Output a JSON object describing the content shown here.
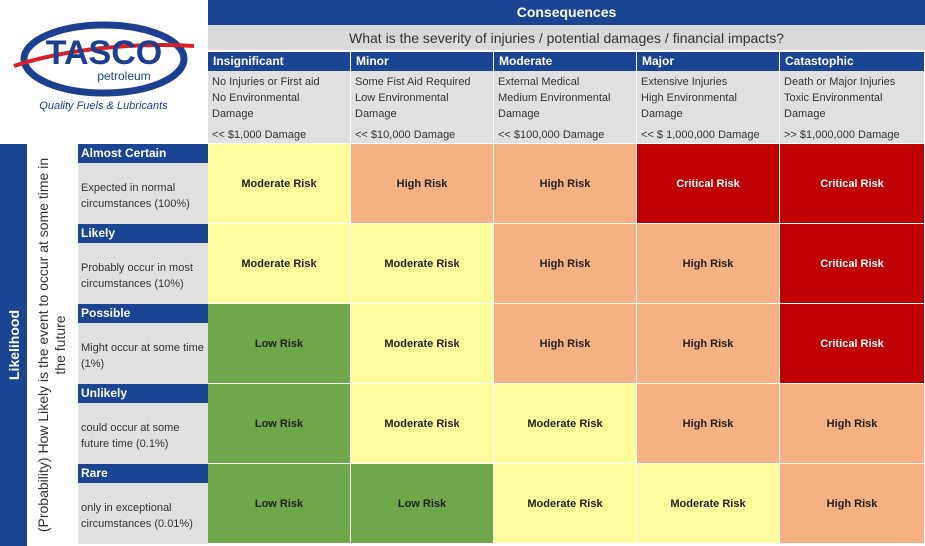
{
  "logo": {
    "brand": "TASCO",
    "sub": "petroleum",
    "tagline": "Quality Fuels & Lubricants"
  },
  "colors": {
    "header": "#1b4593",
    "low": "#6fa84a",
    "moderate": "#fdfd9e",
    "high": "#f5b084",
    "critical": "#c00000",
    "grey": "#e0e0e0"
  },
  "consequences": {
    "title": "Consequences",
    "question": "What is the severity of injuries / potential damages / financial impacts?",
    "columns": [
      {
        "name": "Insignificant",
        "line1": "No Injuries or First aid",
        "line2": "No Environmental",
        "line3": "Damage",
        "damage": "<< $1,000 Damage"
      },
      {
        "name": "Minor",
        "line1": "Some Fist Aid Required",
        "line2": "Low Environmental",
        "line3": "Damage",
        "damage": "<< $10,000 Damage"
      },
      {
        "name": "Moderate",
        "line1": "External Medical",
        "line2": "Medium Environmental",
        "line3": "Damage",
        "damage": "<< $100,000 Damage"
      },
      {
        "name": "Major",
        "line1": "Extensive Injuries",
        "line2": "High Environmental",
        "line3": "Damage",
        "damage": "<< $ 1,000,000 Damage"
      },
      {
        "name": "Catastophic",
        "line1": "Death or Major Injuries",
        "line2": "Toxic Environmental",
        "line3": "Damage",
        "damage": ">> $1,000,000 Damage"
      }
    ]
  },
  "likelihood": {
    "title": "Likelihood",
    "question": "(Probability) How Likely is the event to occur at some time in the future",
    "rows": [
      {
        "name": "Almost Certain",
        "desc": "Expected in normal circumstances (100%)",
        "cells": [
          [
            "Moderate Risk",
            "moderate"
          ],
          [
            "High Risk",
            "high"
          ],
          [
            "High Risk",
            "high"
          ],
          [
            "Critical Risk",
            "critical"
          ],
          [
            "Critical Risk",
            "critical"
          ]
        ]
      },
      {
        "name": "Likely",
        "desc": "Probably occur in most circumstances (10%)",
        "cells": [
          [
            "Moderate Risk",
            "moderate"
          ],
          [
            "Moderate Risk",
            "moderate"
          ],
          [
            "High Risk",
            "high"
          ],
          [
            "High Risk",
            "high"
          ],
          [
            "Critical Risk",
            "critical"
          ]
        ]
      },
      {
        "name": "Possible",
        "desc": "Might occur at some time (1%)",
        "cells": [
          [
            "Low Risk",
            "low"
          ],
          [
            "Moderate Risk",
            "moderate"
          ],
          [
            "High Risk",
            "high"
          ],
          [
            "High Risk",
            "high"
          ],
          [
            "Critical Risk",
            "critical"
          ]
        ]
      },
      {
        "name": "Unlikely",
        "desc": "could occur at some future time (0.1%)",
        "cells": [
          [
            "Low Risk",
            "low"
          ],
          [
            "Moderate Risk",
            "moderate"
          ],
          [
            "Moderate Risk",
            "moderate"
          ],
          [
            "High Risk",
            "high"
          ],
          [
            "High Risk",
            "high"
          ]
        ]
      },
      {
        "name": "Rare",
        "desc": "only in exceptional circumstances (0.01%)",
        "cells": [
          [
            "Low Risk",
            "low"
          ],
          [
            "Low Risk",
            "low"
          ],
          [
            "Moderate Risk",
            "moderate"
          ],
          [
            "Moderate Risk",
            "moderate"
          ],
          [
            "High Risk",
            "high"
          ]
        ]
      }
    ]
  }
}
